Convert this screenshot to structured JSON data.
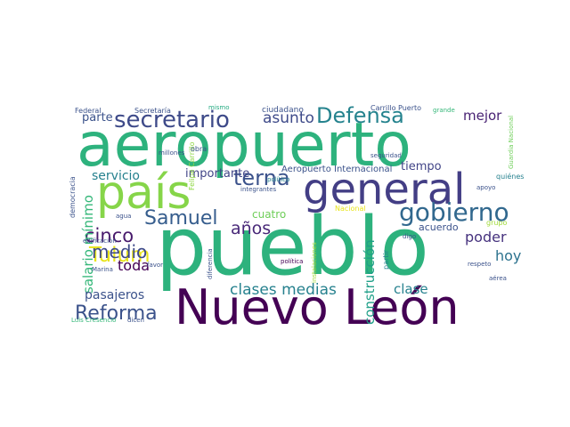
{
  "words": [
    {
      "text": "aeropuerto",
      "color": "#2db27d"
    },
    {
      "text": "pueblo",
      "color": "#2db27d"
    },
    {
      "text": "Nuevo León",
      "color": "#440154"
    },
    {
      "text": "país",
      "color": "#86d549"
    },
    {
      "text": "general",
      "color": "#433e85"
    },
    {
      "text": "secretario",
      "color": "#3e4a89"
    },
    {
      "text": "gobierno",
      "color": "#31688e"
    },
    {
      "text": "Defensa",
      "color": "#25838e"
    },
    {
      "text": "terna",
      "color": "#3b528b"
    },
    {
      "text": "Samuel",
      "color": "#365d8d"
    },
    {
      "text": "Reforma",
      "color": "#3b528b"
    },
    {
      "text": "clases medias",
      "color": "#26818e"
    },
    {
      "text": "Tulum",
      "color": "#e8e419"
    },
    {
      "text": "cinco",
      "color": "#481a6c"
    },
    {
      "text": "medio",
      "color": "#3e4a89"
    },
    {
      "text": "años",
      "color": "#482878"
    },
    {
      "text": "construcción",
      "color": "#1f9f88"
    },
    {
      "text": "asunto",
      "color": "#3e4a89"
    },
    {
      "text": "mejor",
      "color": "#482173"
    },
    {
      "text": "poder",
      "color": "#46327e"
    },
    {
      "text": "hoy",
      "color": "#2c728e"
    },
    {
      "text": "toda",
      "color": "#440154"
    },
    {
      "text": "clase",
      "color": "#26818e"
    },
    {
      "text": "salario mínimo",
      "color": "#35b779"
    },
    {
      "text": "pasajeros",
      "color": "#3b528b"
    },
    {
      "text": "servicio",
      "color": "#26818e"
    },
    {
      "text": "importante",
      "color": "#414487"
    },
    {
      "text": "parte",
      "color": "#3b528b"
    },
    {
      "text": "tiempo",
      "color": "#414487"
    },
    {
      "text": "acuerdo",
      "color": "#3b528b"
    },
    {
      "text": "cuatro",
      "color": "#6ece58"
    },
    {
      "text": "Aeropuerto Internacional",
      "color": "#3b528b"
    },
    {
      "text": "democracia",
      "color": "#3b528b"
    },
    {
      "text": "ciudadano",
      "color": "#3b528b"
    },
    {
      "text": "Carrillo Puerto",
      "color": "#3b528b"
    },
    {
      "text": "Federal",
      "color": "#3b528b"
    },
    {
      "text": "Secretaría",
      "color": "#3b528b"
    },
    {
      "text": "mismo",
      "color": "#25ab82"
    },
    {
      "text": "millones",
      "color": "#3b528b"
    },
    {
      "text": "Felipe Carrillo",
      "color": "#8fd744"
    },
    {
      "text": "obra",
      "color": "#3b528b"
    },
    {
      "text": "integrantes",
      "color": "#3b528b"
    },
    {
      "text": "Nacional",
      "color": "#e8e419"
    },
    {
      "text": "seguridad",
      "color": "#3b528b"
    },
    {
      "text": "quiénes",
      "color": "#26818e"
    },
    {
      "text": "apoyo",
      "color": "#3b528b"
    },
    {
      "text": "grupo",
      "color": "#a0da39"
    },
    {
      "text": "Guardia Nacional",
      "color": "#6ece58"
    },
    {
      "text": "grande",
      "color": "#35b779"
    },
    {
      "text": "político",
      "color": "#26818e"
    },
    {
      "text": "agua",
      "color": "#3b528b"
    },
    {
      "text": "edificación",
      "color": "#3b528b"
    },
    {
      "text": "digo",
      "color": "#3b528b"
    },
    {
      "text": "partir",
      "color": "#26818e"
    },
    {
      "text": "respeto",
      "color": "#3b528b"
    },
    {
      "text": "Marina",
      "color": "#3b528b"
    },
    {
      "text": "favor",
      "color": "#3b528b"
    },
    {
      "text": "diferencia",
      "color": "#3b528b"
    },
    {
      "text": "instalaciones",
      "color": "#a0da39"
    },
    {
      "text": "política",
      "color": "#440154"
    },
    {
      "text": "aérea",
      "color": "#3b528b"
    },
    {
      "text": "Luis Cresencio",
      "color": "#35b779"
    },
    {
      "text": "dicen",
      "color": "#3b528b"
    }
  ]
}
